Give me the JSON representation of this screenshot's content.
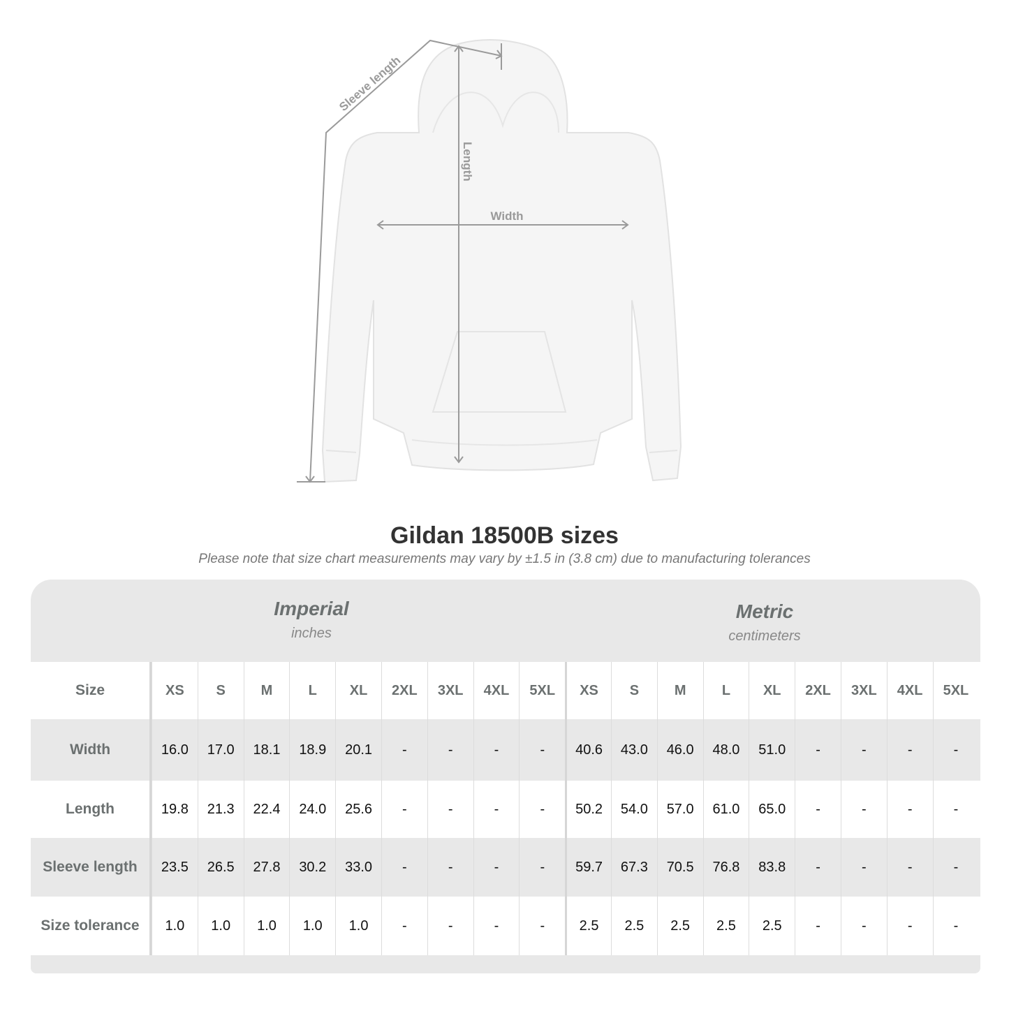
{
  "diagram": {
    "labels": {
      "sleeve": "Sleeve length",
      "length": "Length",
      "width": "Width"
    },
    "colors": {
      "garment": "#f5f5f5",
      "measure_line": "#9a9a9a"
    }
  },
  "title": "Gildan 18500B sizes",
  "subtitle": "Please note that size chart measurements may vary by ±1.5 in (3.8 cm) due to manufacturing tolerances",
  "systems": [
    {
      "name": "Imperial",
      "unit": "inches"
    },
    {
      "name": "Metric",
      "unit": "centimeters"
    }
  ],
  "table": {
    "size_label": "Size",
    "sizes": [
      "XS",
      "S",
      "M",
      "L",
      "XL",
      "2XL",
      "3XL",
      "4XL",
      "5XL"
    ],
    "rows": [
      {
        "label": "Width",
        "imperial": [
          "16.0",
          "17.0",
          "18.1",
          "18.9",
          "20.1",
          "-",
          "-",
          "-",
          "-"
        ],
        "metric": [
          "40.6",
          "43.0",
          "46.0",
          "48.0",
          "51.0",
          "-",
          "-",
          "-",
          "-"
        ]
      },
      {
        "label": "Length",
        "imperial": [
          "19.8",
          "21.3",
          "22.4",
          "24.0",
          "25.6",
          "-",
          "-",
          "-",
          "-"
        ],
        "metric": [
          "50.2",
          "54.0",
          "57.0",
          "61.0",
          "65.0",
          "-",
          "-",
          "-",
          "-"
        ]
      },
      {
        "label": "Sleeve length",
        "imperial": [
          "23.5",
          "26.5",
          "27.8",
          "30.2",
          "33.0",
          "-",
          "-",
          "-",
          "-"
        ],
        "metric": [
          "59.7",
          "67.3",
          "70.5",
          "76.8",
          "83.8",
          "-",
          "-",
          "-",
          "-"
        ]
      },
      {
        "label": "Size tolerance",
        "imperial": [
          "1.0",
          "1.0",
          "1.0",
          "1.0",
          "1.0",
          "-",
          "-",
          "-",
          "-"
        ],
        "metric": [
          "2.5",
          "2.5",
          "2.5",
          "2.5",
          "2.5",
          "-",
          "-",
          "-",
          "-"
        ]
      }
    ]
  },
  "colors": {
    "band": "#e8e8e8",
    "header_text": "#6b7070",
    "title": "#333333"
  }
}
